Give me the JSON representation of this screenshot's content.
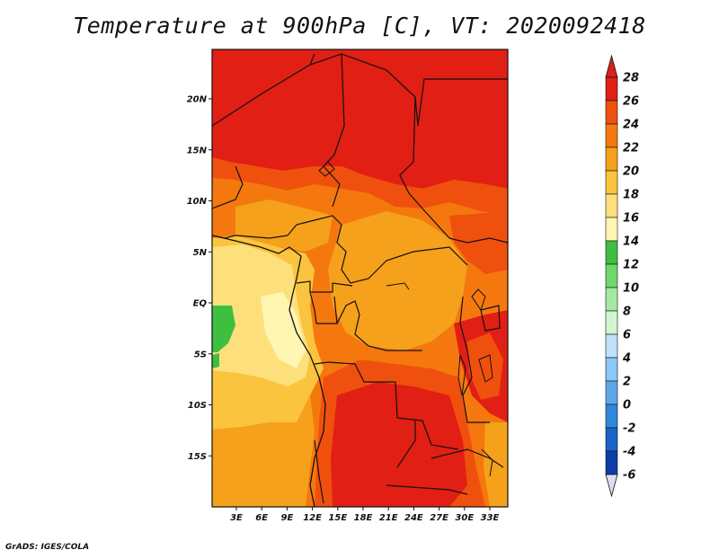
{
  "title": "Temperature at 900hPa [C], VT: 2020092418",
  "footer": "GrADS: IGES/COLA",
  "map": {
    "variable": "Temperature",
    "level": "900hPa",
    "units": "C",
    "valid_time": "2020092418",
    "lat_ticks": [
      {
        "lat": 20,
        "label": "20N"
      },
      {
        "lat": 15,
        "label": "15N"
      },
      {
        "lat": 10,
        "label": "10N"
      },
      {
        "lat": 5,
        "label": "5N"
      },
      {
        "lat": 0,
        "label": "EQ"
      },
      {
        "lat": -5,
        "label": "5S"
      },
      {
        "lat": -10,
        "label": "10S"
      },
      {
        "lat": -15,
        "label": "15S"
      }
    ],
    "lon_ticks": [
      {
        "lon": 3,
        "label": "3E"
      },
      {
        "lon": 6,
        "label": "6E"
      },
      {
        "lon": 9,
        "label": "9E"
      },
      {
        "lon": 12,
        "label": "12E"
      },
      {
        "lon": 15,
        "label": "15E"
      },
      {
        "lon": 18,
        "label": "18E"
      },
      {
        "lon": 21,
        "label": "21E"
      },
      {
        "lon": 24,
        "label": "24E"
      },
      {
        "lon": 27,
        "label": "27E"
      },
      {
        "lon": 30,
        "label": "30E"
      },
      {
        "lon": 33,
        "label": "33E"
      }
    ]
  },
  "colorbar": {
    "levels": [
      "28",
      "26",
      "24",
      "22",
      "20",
      "18",
      "16",
      "14",
      "12",
      "10",
      "8",
      "6",
      "4",
      "2",
      "0",
      "-2",
      "-4",
      "-6"
    ],
    "colors": [
      "#e11f14",
      "#f0500e",
      "#f5780e",
      "#f6a11b",
      "#fbc43f",
      "#fde07c",
      "#fff6b2",
      "#3fbf3f",
      "#6ed86b",
      "#a5e8a2",
      "#d2f5d1",
      "#bfe1fb",
      "#8cc7f5",
      "#5ea7ea",
      "#2f87db",
      "#1a63c9",
      "#0d3ea8",
      "#0b1a6e"
    ],
    "top_triangle_color": "#d5231c",
    "bottom_triangle_color": "#dcdcf5"
  }
}
